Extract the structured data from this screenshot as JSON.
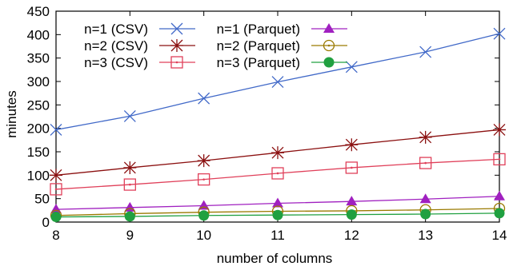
{
  "chart_data": {
    "type": "line",
    "xlabel": "number of columns",
    "ylabel": "minutes",
    "x": [
      8,
      9,
      10,
      11,
      12,
      13,
      14
    ],
    "xlim": [
      8,
      14
    ],
    "ylim": [
      0,
      450
    ],
    "xticks": [
      "8",
      "9",
      "10",
      "11",
      "12",
      "13",
      "14"
    ],
    "yticks": [
      "0",
      "50",
      "100",
      "150",
      "200",
      "250",
      "300",
      "350",
      "400",
      "450"
    ],
    "grid": false,
    "legend_position": "top-left",
    "series": [
      {
        "name": "n=1 (CSV)",
        "color": "#4169c8",
        "marker": "x",
        "values": [
          197,
          226,
          264,
          299,
          331,
          363,
          402
        ]
      },
      {
        "name": "n=1 (Parquet)",
        "color": "#a020c0",
        "marker": "triangle",
        "values": [
          27,
          31,
          35,
          40,
          44,
          49,
          55
        ]
      },
      {
        "name": "n=2 (CSV)",
        "color": "#8b1010",
        "marker": "star",
        "values": [
          100,
          116,
          131,
          148,
          165,
          181,
          197
        ]
      },
      {
        "name": "n=2 (Parquet)",
        "color": "#9a7a00",
        "marker": "circle-dot",
        "values": [
          14,
          18,
          21,
          23,
          24,
          26,
          29
        ]
      },
      {
        "name": "n=3 (CSV)",
        "color": "#e0405a",
        "marker": "square-dot",
        "values": [
          70,
          80,
          91,
          104,
          116,
          126,
          134
        ]
      },
      {
        "name": "n=3 (Parquet)",
        "color": "#20a040",
        "marker": "filled-circle",
        "values": [
          11,
          12,
          14,
          15,
          16,
          17,
          19
        ]
      }
    ]
  }
}
